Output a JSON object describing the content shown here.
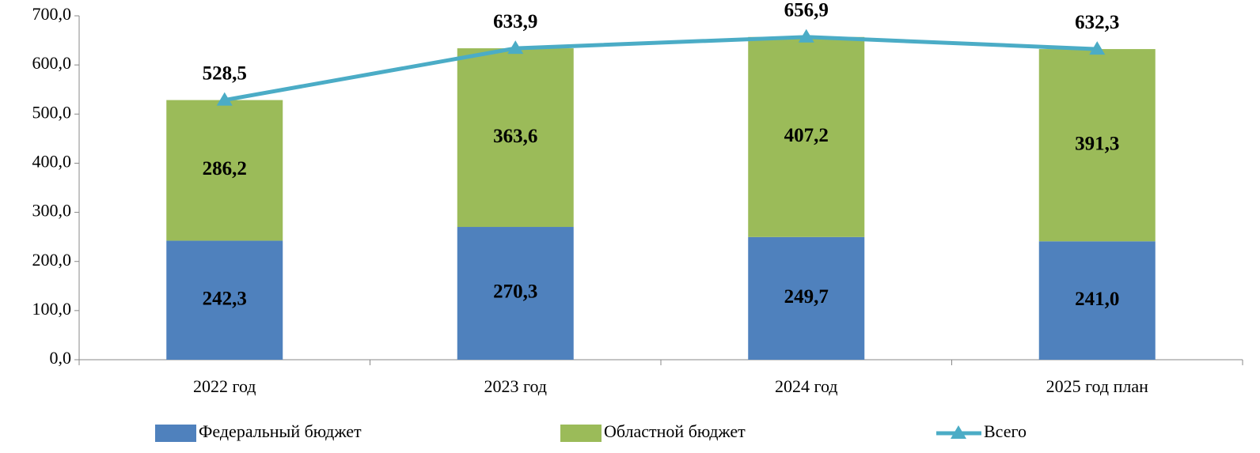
{
  "chart_data": {
    "type": "bar",
    "stacked": true,
    "categories": [
      "2022 год",
      "2023 год",
      "2024 год",
      "2025 год план"
    ],
    "series": [
      {
        "name": "Федеральный бюджет",
        "color": "#4f81bd",
        "values": [
          242.3,
          270.3,
          249.7,
          241.0
        ],
        "value_labels": [
          "242,3",
          "270,3",
          "249,7",
          "241,0"
        ]
      },
      {
        "name": "Областной бюджет",
        "color": "#9bbb59",
        "values": [
          286.2,
          363.6,
          407.2,
          391.3
        ],
        "value_labels": [
          "286,2",
          "363,6",
          "407,2",
          "391,3"
        ]
      },
      {
        "name": "Всего",
        "type": "line",
        "color": "#4bacc6",
        "values": [
          528.5,
          633.9,
          656.9,
          632.3
        ],
        "value_labels": [
          "528,5",
          "633,9",
          "656,9",
          "632,3"
        ]
      }
    ],
    "ylim": [
      0,
      700
    ],
    "yticks": [
      {
        "value": 0,
        "label": "0,0"
      },
      {
        "value": 100,
        "label": "100,0"
      },
      {
        "value": 200,
        "label": "200,0"
      },
      {
        "value": 300,
        "label": "300,0"
      },
      {
        "value": 400,
        "label": "400,0"
      },
      {
        "value": 500,
        "label": "500,0"
      },
      {
        "value": 600,
        "label": "600,0"
      },
      {
        "value": 700,
        "label": "700,0"
      }
    ],
    "legend": "bottom"
  }
}
